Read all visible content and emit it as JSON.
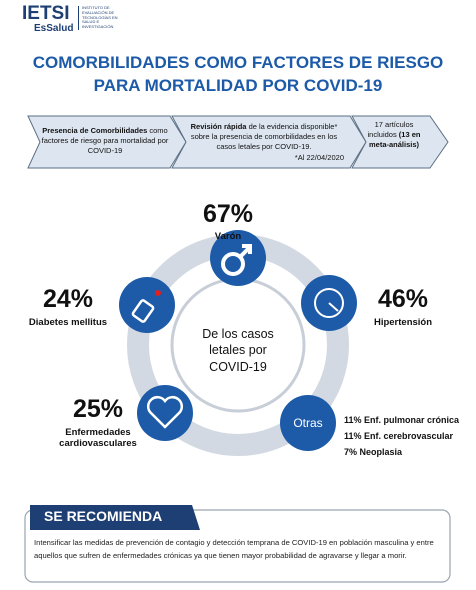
{
  "header": {
    "logo": "IETSI",
    "logo_sub": "EsSalud",
    "institute": "INSTITUTO DE EVALUACIÓN DE TECNOLOGÍAS EN SALUD E INVESTIGACIÓN"
  },
  "title": "COMORBILIDADES COMO FACTORES DE RIESGO PARA MORTALIDAD POR COVID-19",
  "steps": [
    {
      "bold": "Presencia de Comorbilidades",
      "text": "como factores de riesgo para mortalidad por COVID-19"
    },
    {
      "bold": "Revisión rápida",
      "text": "de la evidencia disponible* sobre la presencia de comorbilidades en los casos letales por COVID-19.",
      "note": "*Al 22/04/2020"
    },
    {
      "text": "17 artículos incluidos",
      "bold": "(13 en meta-análisis)"
    }
  ],
  "center": "De los casos letales por COVID-19",
  "items": [
    {
      "percent": "67%",
      "label": "Varón"
    },
    {
      "percent": "46%",
      "label": "Hipertensión"
    },
    {
      "percent": "24%",
      "label": "Diabetes mellitus"
    },
    {
      "percent": "25%",
      "label": "Enfermedades cardiovasculares"
    }
  ],
  "others": {
    "label": "Otras",
    "list": [
      "11% Enf. pulmonar crónica",
      "11% Enf. cerebrovascular",
      "7% Neoplasia"
    ]
  },
  "recommendation": {
    "title": "SE RECOMIENDA",
    "text": "Intensificar las medidas de prevención de contagio y detección temprana de COVID-19 en población masculina y entre aquellos que sufren de enfermedades crónicas ya que tienen mayor probabilidad de agravarse y llegar a morir."
  }
}
